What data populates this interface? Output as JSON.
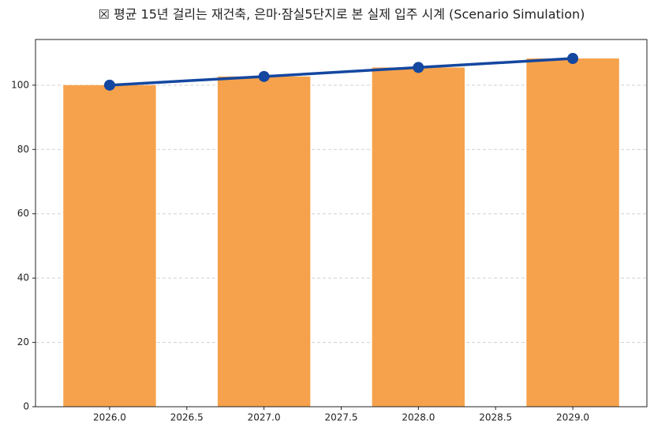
{
  "chart_data": {
    "type": "bar-line",
    "title": "☒ 평균 15년 걸리는 재건축, 은마·잠실5단지로 본 실제 입주 시계 (Scenario Simulation)",
    "x": [
      2026,
      2027,
      2028,
      2029
    ],
    "series": [
      {
        "type": "bar",
        "color": "#f6a24c",
        "values": [
          100,
          102.7,
          105.5,
          108.3
        ]
      },
      {
        "type": "line",
        "color": "#1447a0",
        "values": [
          100,
          102.7,
          105.5,
          108.3
        ]
      }
    ],
    "xlim": [
      2025.52,
      2029.48
    ],
    "xticks": [
      {
        "value": 2026,
        "label": "2026.0"
      },
      {
        "value": 2026.5,
        "label": "2026.5"
      },
      {
        "value": 2027,
        "label": "2027.0"
      },
      {
        "value": 2027.5,
        "label": "2027.5"
      },
      {
        "value": 2028,
        "label": "2028.0"
      },
      {
        "value": 2028.5,
        "label": "2028.5"
      },
      {
        "value": 2029,
        "label": "2029.0"
      }
    ],
    "ylim": [
      0,
      114.2
    ],
    "yticks": [
      0,
      20,
      40,
      60,
      80,
      100
    ],
    "grid": true
  }
}
